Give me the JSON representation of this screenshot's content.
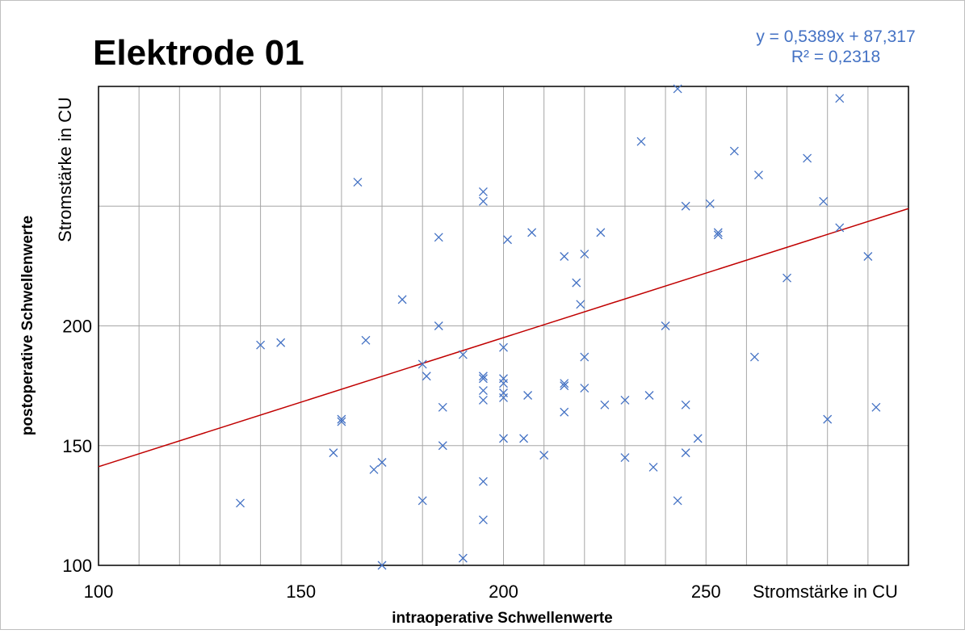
{
  "chart_data": {
    "type": "scatter",
    "title": "Elektrode 01",
    "x_label": "intraoperative Schwellenwerte",
    "y_label": "postoperative Schwellenwerte",
    "x_unit": "Stromstärke in CU",
    "y_unit": "Stromstärke in CU",
    "trendline": {
      "slope": 0.5389,
      "intercept": 87.317,
      "color": "#c00000",
      "label": "y = 0,5389x + 87,317",
      "r2_label": "R² = 0,2318"
    },
    "color": "#4472c4",
    "xlim": [
      100,
      300
    ],
    "ylim": [
      100,
      300
    ],
    "xticks": [
      100,
      150,
      200,
      250
    ],
    "yticks": [
      100,
      150,
      200
    ],
    "xgrid": [
      100,
      110,
      120,
      130,
      140,
      150,
      160,
      170,
      180,
      190,
      200,
      210,
      220,
      230,
      240,
      250,
      260,
      270,
      280,
      290,
      300
    ],
    "ygrid": [
      100,
      150,
      200,
      250,
      300
    ],
    "x": [
      135,
      140,
      145,
      164,
      166,
      158,
      160,
      160,
      168,
      170,
      170,
      175,
      180,
      181,
      180,
      184,
      184,
      185,
      185,
      190,
      190,
      195,
      195,
      195,
      195,
      195,
      195,
      195,
      195,
      200,
      200,
      200,
      200,
      200,
      200,
      205,
      207,
      201,
      206,
      210,
      215,
      215,
      215,
      215,
      220,
      218,
      219,
      220,
      220,
      224,
      225,
      230,
      230,
      234,
      236,
      237,
      240,
      243,
      243,
      245,
      245,
      245,
      248,
      251,
      253,
      253,
      257,
      262,
      263,
      270,
      275,
      279,
      280,
      283,
      283,
      290,
      292
    ],
    "y": [
      126,
      192,
      193,
      260,
      194,
      147,
      161,
      160,
      140,
      143,
      100,
      211,
      184,
      179,
      127,
      237,
      200,
      166,
      150,
      188,
      103,
      256,
      252,
      179,
      178,
      173,
      169,
      135,
      119,
      191,
      178,
      176,
      172,
      170,
      153,
      153,
      239,
      236,
      171,
      146,
      229,
      176,
      175,
      164,
      230,
      218,
      209,
      187,
      174,
      239,
      167,
      169,
      145,
      277,
      171,
      141,
      200,
      299,
      127,
      250,
      167,
      147,
      153,
      251,
      239,
      238,
      273,
      187,
      263,
      220,
      270,
      252,
      161,
      295,
      241,
      229,
      166
    ]
  }
}
